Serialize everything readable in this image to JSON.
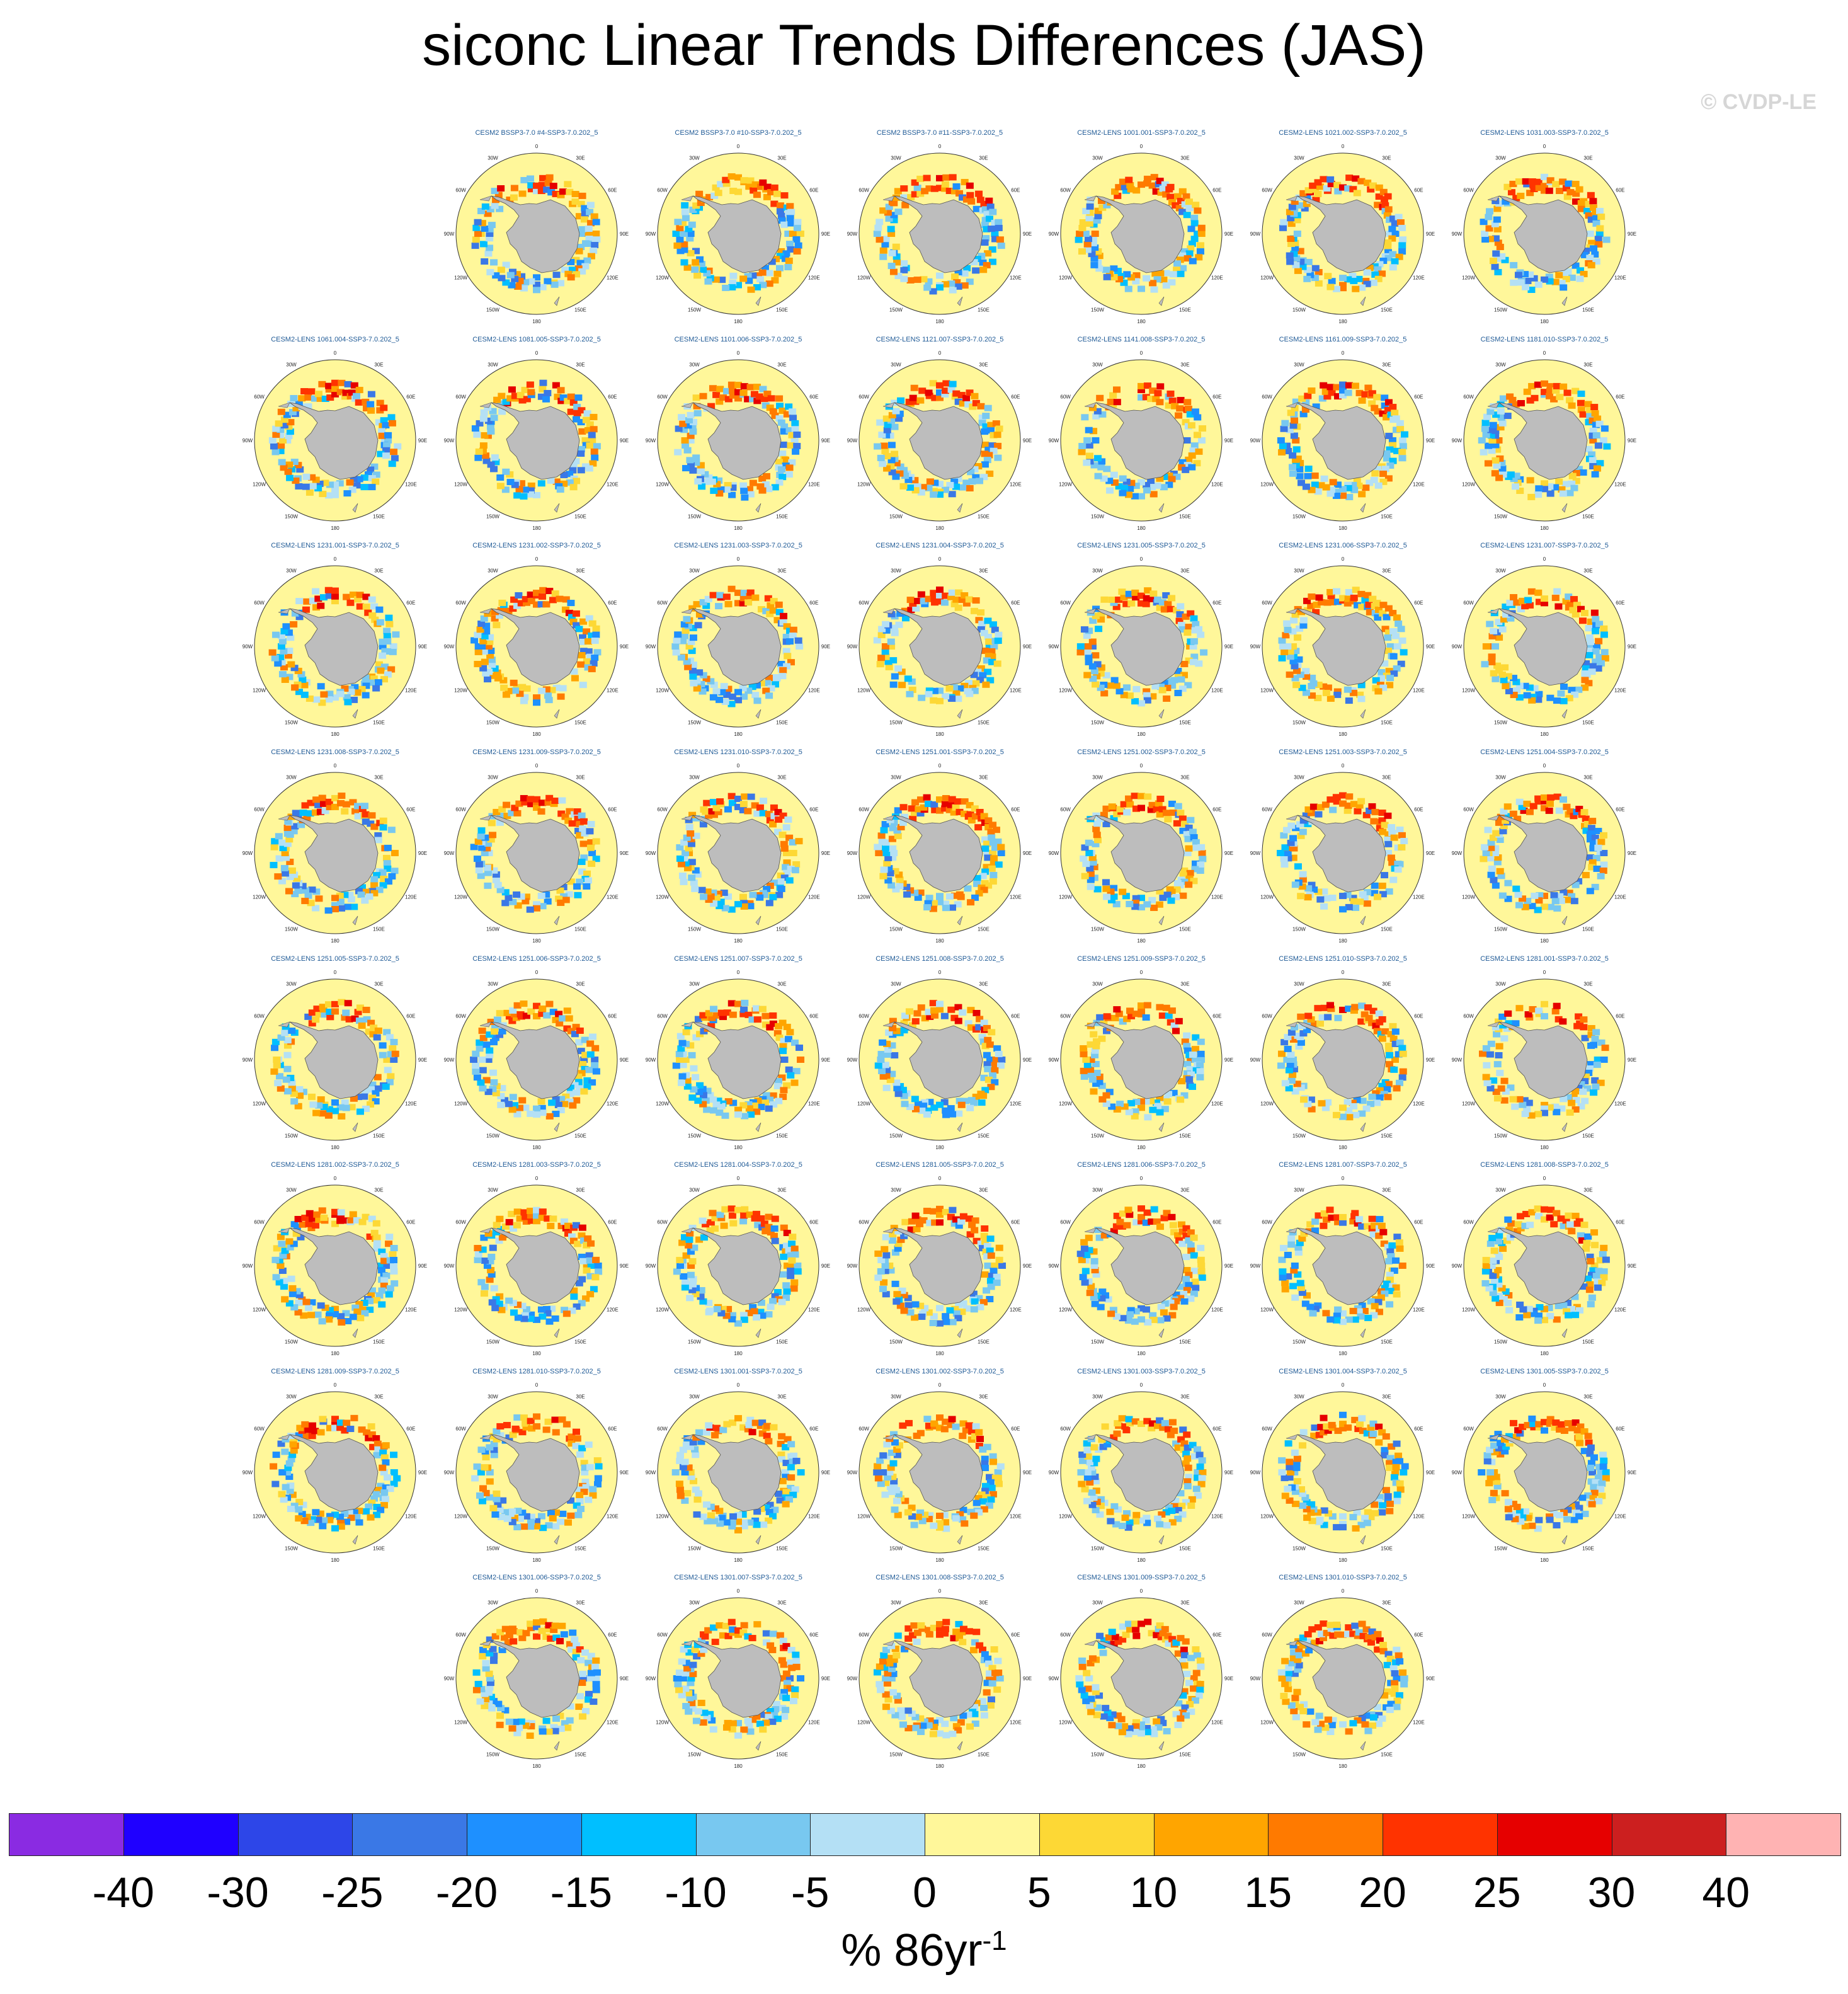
{
  "title": "siconc Linear Trends Differences (JAS)",
  "copyright": "© CVDP-LE",
  "units": {
    "base": "% 86yr",
    "exponent": "-1"
  },
  "map_labels": [
    "0",
    "30E",
    "60E",
    "90E",
    "120E",
    "150E",
    "180",
    "150W",
    "120W",
    "90W",
    "60W",
    "30W"
  ],
  "colors": {
    "land": "#bdbdbd",
    "ocean": "#fff79a",
    "title_text": "#1f5a96"
  },
  "colorbar": {
    "colors": [
      "#8a2be2",
      "#1f00ff",
      "#2d46e8",
      "#3a78e6",
      "#1e90ff",
      "#00bfff",
      "#78c8f0",
      "#b4e0f5",
      "#fff79a",
      "#fdd835",
      "#ffa500",
      "#ff7a00",
      "#ff3300",
      "#e60000",
      "#cc1f1f",
      "#ffb3b3"
    ],
    "tick_labels": [
      "-40",
      "-30",
      "-25",
      "-20",
      "-15",
      "-10",
      "-5",
      "0",
      "5",
      "10",
      "15",
      "20",
      "25",
      "30",
      "40"
    ]
  },
  "panels": [
    {
      "label": "CESM2 BSSP3-7.0 #4-SSP3-7.0.202_5"
    },
    {
      "label": "CESM2 BSSP3-7.0 #10-SSP3-7.0.202_5"
    },
    {
      "label": "CESM2 BSSP3-7.0 #11-SSP3-7.0.202_5"
    },
    {
      "label": "CESM2-LENS 1001.001-SSP3-7.0.202_5"
    },
    {
      "label": "CESM2-LENS 1021.002-SSP3-7.0.202_5"
    },
    {
      "label": "CESM2-LENS 1031.003-SSP3-7.0.202_5"
    },
    {
      "label": "CESM2-LENS 1061.004-SSP3-7.0.202_5"
    },
    {
      "label": "CESM2-LENS 1081.005-SSP3-7.0.202_5"
    },
    {
      "label": "CESM2-LENS 1101.006-SSP3-7.0.202_5"
    },
    {
      "label": "CESM2-LENS 1121.007-SSP3-7.0.202_5"
    },
    {
      "label": "CESM2-LENS 1141.008-SSP3-7.0.202_5"
    },
    {
      "label": "CESM2-LENS 1161.009-SSP3-7.0.202_5"
    },
    {
      "label": "CESM2-LENS 1181.010-SSP3-7.0.202_5"
    },
    {
      "label": "CESM2-LENS 1231.001-SSP3-7.0.202_5"
    },
    {
      "label": "CESM2-LENS 1231.002-SSP3-7.0.202_5"
    },
    {
      "label": "CESM2-LENS 1231.003-SSP3-7.0.202_5"
    },
    {
      "label": "CESM2-LENS 1231.004-SSP3-7.0.202_5"
    },
    {
      "label": "CESM2-LENS 1231.005-SSP3-7.0.202_5"
    },
    {
      "label": "CESM2-LENS 1231.006-SSP3-7.0.202_5"
    },
    {
      "label": "CESM2-LENS 1231.007-SSP3-7.0.202_5"
    },
    {
      "label": "CESM2-LENS 1231.008-SSP3-7.0.202_5"
    },
    {
      "label": "CESM2-LENS 1231.009-SSP3-7.0.202_5"
    },
    {
      "label": "CESM2-LENS 1231.010-SSP3-7.0.202_5"
    },
    {
      "label": "CESM2-LENS 1251.001-SSP3-7.0.202_5"
    },
    {
      "label": "CESM2-LENS 1251.002-SSP3-7.0.202_5"
    },
    {
      "label": "CESM2-LENS 1251.003-SSP3-7.0.202_5"
    },
    {
      "label": "CESM2-LENS 1251.004-SSP3-7.0.202_5"
    },
    {
      "label": "CESM2-LENS 1251.005-SSP3-7.0.202_5"
    },
    {
      "label": "CESM2-LENS 1251.006-SSP3-7.0.202_5"
    },
    {
      "label": "CESM2-LENS 1251.007-SSP3-7.0.202_5"
    },
    {
      "label": "CESM2-LENS 1251.008-SSP3-7.0.202_5"
    },
    {
      "label": "CESM2-LENS 1251.009-SSP3-7.0.202_5"
    },
    {
      "label": "CESM2-LENS 1251.010-SSP3-7.0.202_5"
    },
    {
      "label": "CESM2-LENS 1281.001-SSP3-7.0.202_5"
    },
    {
      "label": "CESM2-LENS 1281.002-SSP3-7.0.202_5"
    },
    {
      "label": "CESM2-LENS 1281.003-SSP3-7.0.202_5"
    },
    {
      "label": "CESM2-LENS 1281.004-SSP3-7.0.202_5"
    },
    {
      "label": "CESM2-LENS 1281.005-SSP3-7.0.202_5"
    },
    {
      "label": "CESM2-LENS 1281.006-SSP3-7.0.202_5"
    },
    {
      "label": "CESM2-LENS 1281.007-SSP3-7.0.202_5"
    },
    {
      "label": "CESM2-LENS 1281.008-SSP3-7.0.202_5"
    },
    {
      "label": "CESM2-LENS 1281.009-SSP3-7.0.202_5"
    },
    {
      "label": "CESM2-LENS 1281.010-SSP3-7.0.202_5"
    },
    {
      "label": "CESM2-LENS 1301.001-SSP3-7.0.202_5"
    },
    {
      "label": "CESM2-LENS 1301.002-SSP3-7.0.202_5"
    },
    {
      "label": "CESM2-LENS 1301.003-SSP3-7.0.202_5"
    },
    {
      "label": "CESM2-LENS 1301.004-SSP3-7.0.202_5"
    },
    {
      "label": "CESM2-LENS 1301.005-SSP3-7.0.202_5"
    },
    {
      "label": "CESM2-LENS 1301.006-SSP3-7.0.202_5"
    },
    {
      "label": "CESM2-LENS 1301.007-SSP3-7.0.202_5"
    },
    {
      "label": "CESM2-LENS 1301.008-SSP3-7.0.202_5"
    },
    {
      "label": "CESM2-LENS 1301.009-SSP3-7.0.202_5"
    },
    {
      "label": "CESM2-LENS 1301.010-SSP3-7.0.202_5"
    }
  ]
}
